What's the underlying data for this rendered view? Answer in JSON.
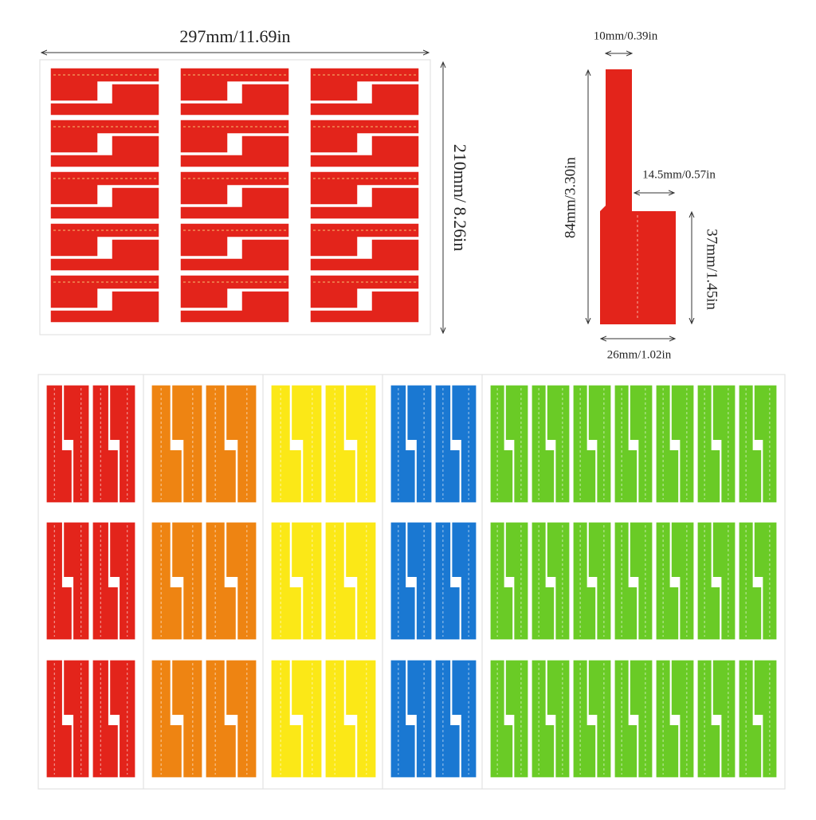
{
  "dimensions": {
    "sheet_width": "297mm/11.69in",
    "sheet_height": "210mm/ 8.26in",
    "tab_width": "10mm/0.39in",
    "label_length": "84mm/3.30in",
    "step_width": "14.5mm/0.57in",
    "wide_length": "37mm/1.45in",
    "label_width": "26mm/1.02in"
  }
}
